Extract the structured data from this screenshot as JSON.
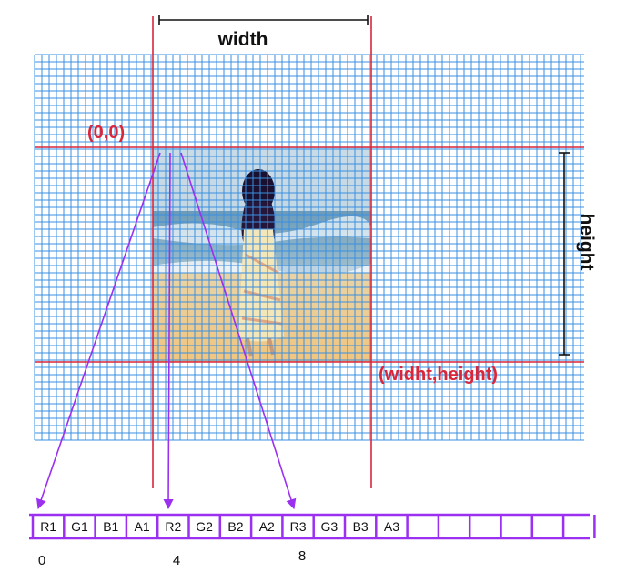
{
  "labels": {
    "width": "width",
    "height": "height",
    "origin": "(0,0)",
    "corner": "(widht,height)"
  },
  "byte_strip": {
    "cells": [
      "R1",
      "G1",
      "B1",
      "A1",
      "R2",
      "G2",
      "B2",
      "A2",
      "R3",
      "G3",
      "B3",
      "A3",
      "",
      "",
      "",
      "",
      "",
      ""
    ],
    "indices": [
      "0",
      "4",
      "8"
    ]
  },
  "colors": {
    "grid": "#3a8fe0",
    "boundary": "#d9263a",
    "arrow": "#9b30f0",
    "dimension": "#111111"
  },
  "photo": {
    "description_icon": "woman-on-beach-photo"
  }
}
